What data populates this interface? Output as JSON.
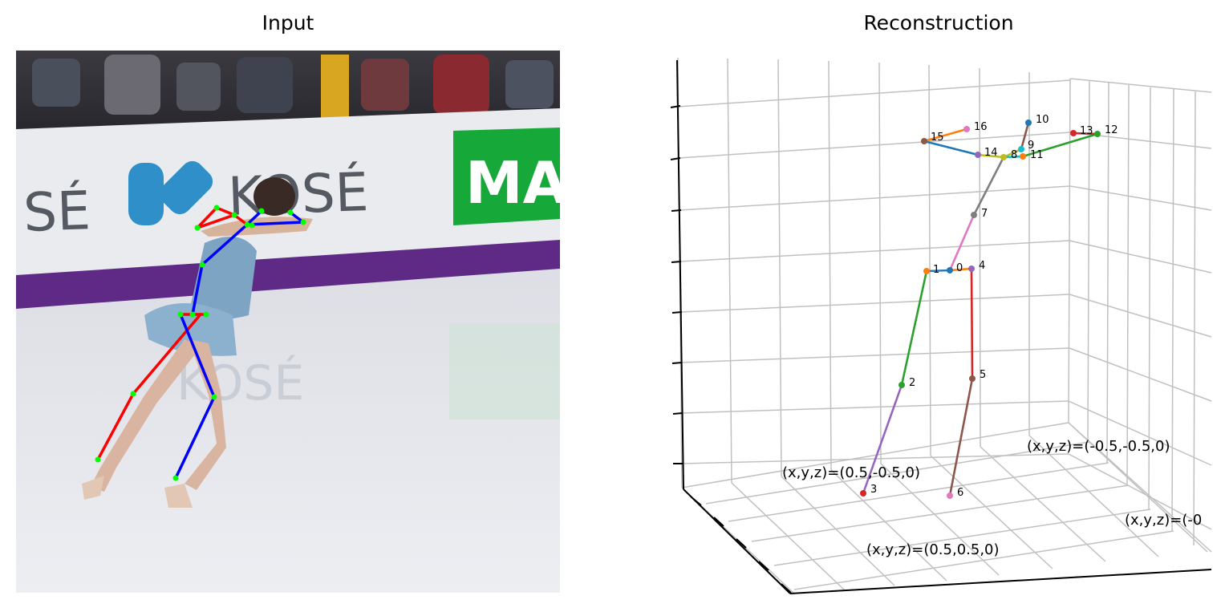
{
  "panels": {
    "input_title": "Input",
    "reconstruction_title": "Reconstruction"
  },
  "input_scene": {
    "board_text_left": "SÉ",
    "board_text_mid": "KOSÉ",
    "board_text_right": "MA",
    "reflection_text": "KOSÉ"
  },
  "joint_labels": {
    "j0": "0",
    "j1": "1",
    "j2": "2",
    "j3": "3",
    "j4": "4",
    "j5": "5",
    "j6": "6",
    "j7": "7",
    "j8": "8",
    "j9": "9",
    "j10": "10",
    "j11": "11",
    "j12": "12",
    "j13": "13",
    "j14": "14",
    "j15": "15",
    "j16": "16"
  },
  "corner_annotations": {
    "a1": "(x,y,z)=(0.5,-0.5,0)",
    "a2": "(x,y,z)=(-0.5,-0.5,0)",
    "a3": "(x,y,z)=(-0",
    "a4": "(x,y,z)=(0.5,0.5,0)"
  },
  "colors": {
    "skeleton_left": "#ff0000",
    "skeleton_right": "#0000ff",
    "keypoint": "#00ff00",
    "grid": "#c0c0c0",
    "board_purple": "#5e2a86",
    "banner_green": "#17a83a"
  }
}
